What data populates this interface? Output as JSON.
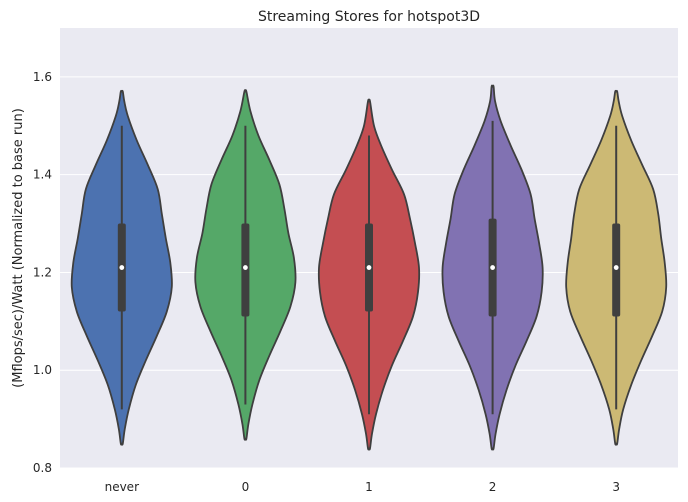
{
  "chart_data": {
    "type": "violin",
    "title": "Streaming Stores for hotspot3D",
    "xlabel": "",
    "ylabel": "(Mflops/sec)/Watt (Normalized to base run)",
    "ylim": [
      0.8,
      1.7
    ],
    "yticks": [
      "0.8",
      "1.0",
      "1.2",
      "1.4",
      "1.6"
    ],
    "categories": [
      "never",
      "0",
      "1",
      "2",
      "3"
    ],
    "colors": [
      "#4C72B0",
      "#55A868",
      "#C44E52",
      "#8172B2",
      "#CCB974"
    ],
    "grid": true,
    "violins": [
      {
        "category": "never",
        "min": 0.85,
        "max": 1.57,
        "whisker_low": 0.92,
        "whisker_high": 1.5,
        "q1": 1.12,
        "median": 1.21,
        "q3": 1.3,
        "profile": [
          [
            0.85,
            0.02
          ],
          [
            0.88,
            0.06
          ],
          [
            0.92,
            0.14
          ],
          [
            0.97,
            0.28
          ],
          [
            1.02,
            0.48
          ],
          [
            1.07,
            0.7
          ],
          [
            1.12,
            0.9
          ],
          [
            1.17,
            1.0
          ],
          [
            1.22,
            0.97
          ],
          [
            1.27,
            0.88
          ],
          [
            1.32,
            0.8
          ],
          [
            1.37,
            0.72
          ],
          [
            1.42,
            0.52
          ],
          [
            1.47,
            0.3
          ],
          [
            1.52,
            0.12
          ],
          [
            1.55,
            0.05
          ],
          [
            1.57,
            0.02
          ]
        ]
      },
      {
        "category": "0",
        "min": 0.86,
        "max": 1.57,
        "whisker_low": 0.93,
        "whisker_high": 1.5,
        "q1": 1.11,
        "median": 1.21,
        "q3": 1.3,
        "profile": [
          [
            0.86,
            0.02
          ],
          [
            0.89,
            0.06
          ],
          [
            0.93,
            0.14
          ],
          [
            0.98,
            0.28
          ],
          [
            1.03,
            0.48
          ],
          [
            1.08,
            0.7
          ],
          [
            1.13,
            0.9
          ],
          [
            1.18,
            1.0
          ],
          [
            1.23,
            0.97
          ],
          [
            1.28,
            0.86
          ],
          [
            1.33,
            0.78
          ],
          [
            1.38,
            0.68
          ],
          [
            1.43,
            0.48
          ],
          [
            1.48,
            0.26
          ],
          [
            1.53,
            0.1
          ],
          [
            1.57,
            0.02
          ]
        ]
      },
      {
        "category": "1",
        "min": 0.84,
        "max": 1.55,
        "whisker_low": 0.91,
        "whisker_high": 1.48,
        "q1": 1.12,
        "median": 1.21,
        "q3": 1.3,
        "profile": [
          [
            0.84,
            0.02
          ],
          [
            0.87,
            0.06
          ],
          [
            0.91,
            0.14
          ],
          [
            0.96,
            0.28
          ],
          [
            1.01,
            0.46
          ],
          [
            1.06,
            0.68
          ],
          [
            1.11,
            0.88
          ],
          [
            1.16,
            0.98
          ],
          [
            1.21,
            1.0
          ],
          [
            1.26,
            0.92
          ],
          [
            1.31,
            0.82
          ],
          [
            1.36,
            0.7
          ],
          [
            1.41,
            0.46
          ],
          [
            1.46,
            0.24
          ],
          [
            1.5,
            0.1
          ],
          [
            1.55,
            0.02
          ]
        ]
      },
      {
        "category": "2",
        "min": 0.84,
        "max": 1.58,
        "whisker_low": 0.91,
        "whisker_high": 1.51,
        "q1": 1.11,
        "median": 1.21,
        "q3": 1.31,
        "profile": [
          [
            0.84,
            0.02
          ],
          [
            0.87,
            0.06
          ],
          [
            0.91,
            0.14
          ],
          [
            0.96,
            0.28
          ],
          [
            1.01,
            0.46
          ],
          [
            1.06,
            0.68
          ],
          [
            1.11,
            0.88
          ],
          [
            1.16,
            0.98
          ],
          [
            1.21,
            1.0
          ],
          [
            1.26,
            0.93
          ],
          [
            1.31,
            0.84
          ],
          [
            1.36,
            0.76
          ],
          [
            1.41,
            0.58
          ],
          [
            1.46,
            0.36
          ],
          [
            1.51,
            0.16
          ],
          [
            1.55,
            0.05
          ],
          [
            1.58,
            0.02
          ]
        ]
      },
      {
        "category": "3",
        "min": 0.85,
        "max": 1.57,
        "whisker_low": 0.92,
        "whisker_high": 1.5,
        "q1": 1.11,
        "median": 1.21,
        "q3": 1.3,
        "profile": [
          [
            0.85,
            0.02
          ],
          [
            0.88,
            0.06
          ],
          [
            0.92,
            0.14
          ],
          [
            0.97,
            0.3
          ],
          [
            1.02,
            0.5
          ],
          [
            1.07,
            0.72
          ],
          [
            1.12,
            0.92
          ],
          [
            1.17,
            1.0
          ],
          [
            1.22,
            0.97
          ],
          [
            1.27,
            0.9
          ],
          [
            1.32,
            0.84
          ],
          [
            1.37,
            0.74
          ],
          [
            1.42,
            0.52
          ],
          [
            1.47,
            0.3
          ],
          [
            1.52,
            0.12
          ],
          [
            1.55,
            0.05
          ],
          [
            1.57,
            0.02
          ]
        ]
      }
    ]
  }
}
